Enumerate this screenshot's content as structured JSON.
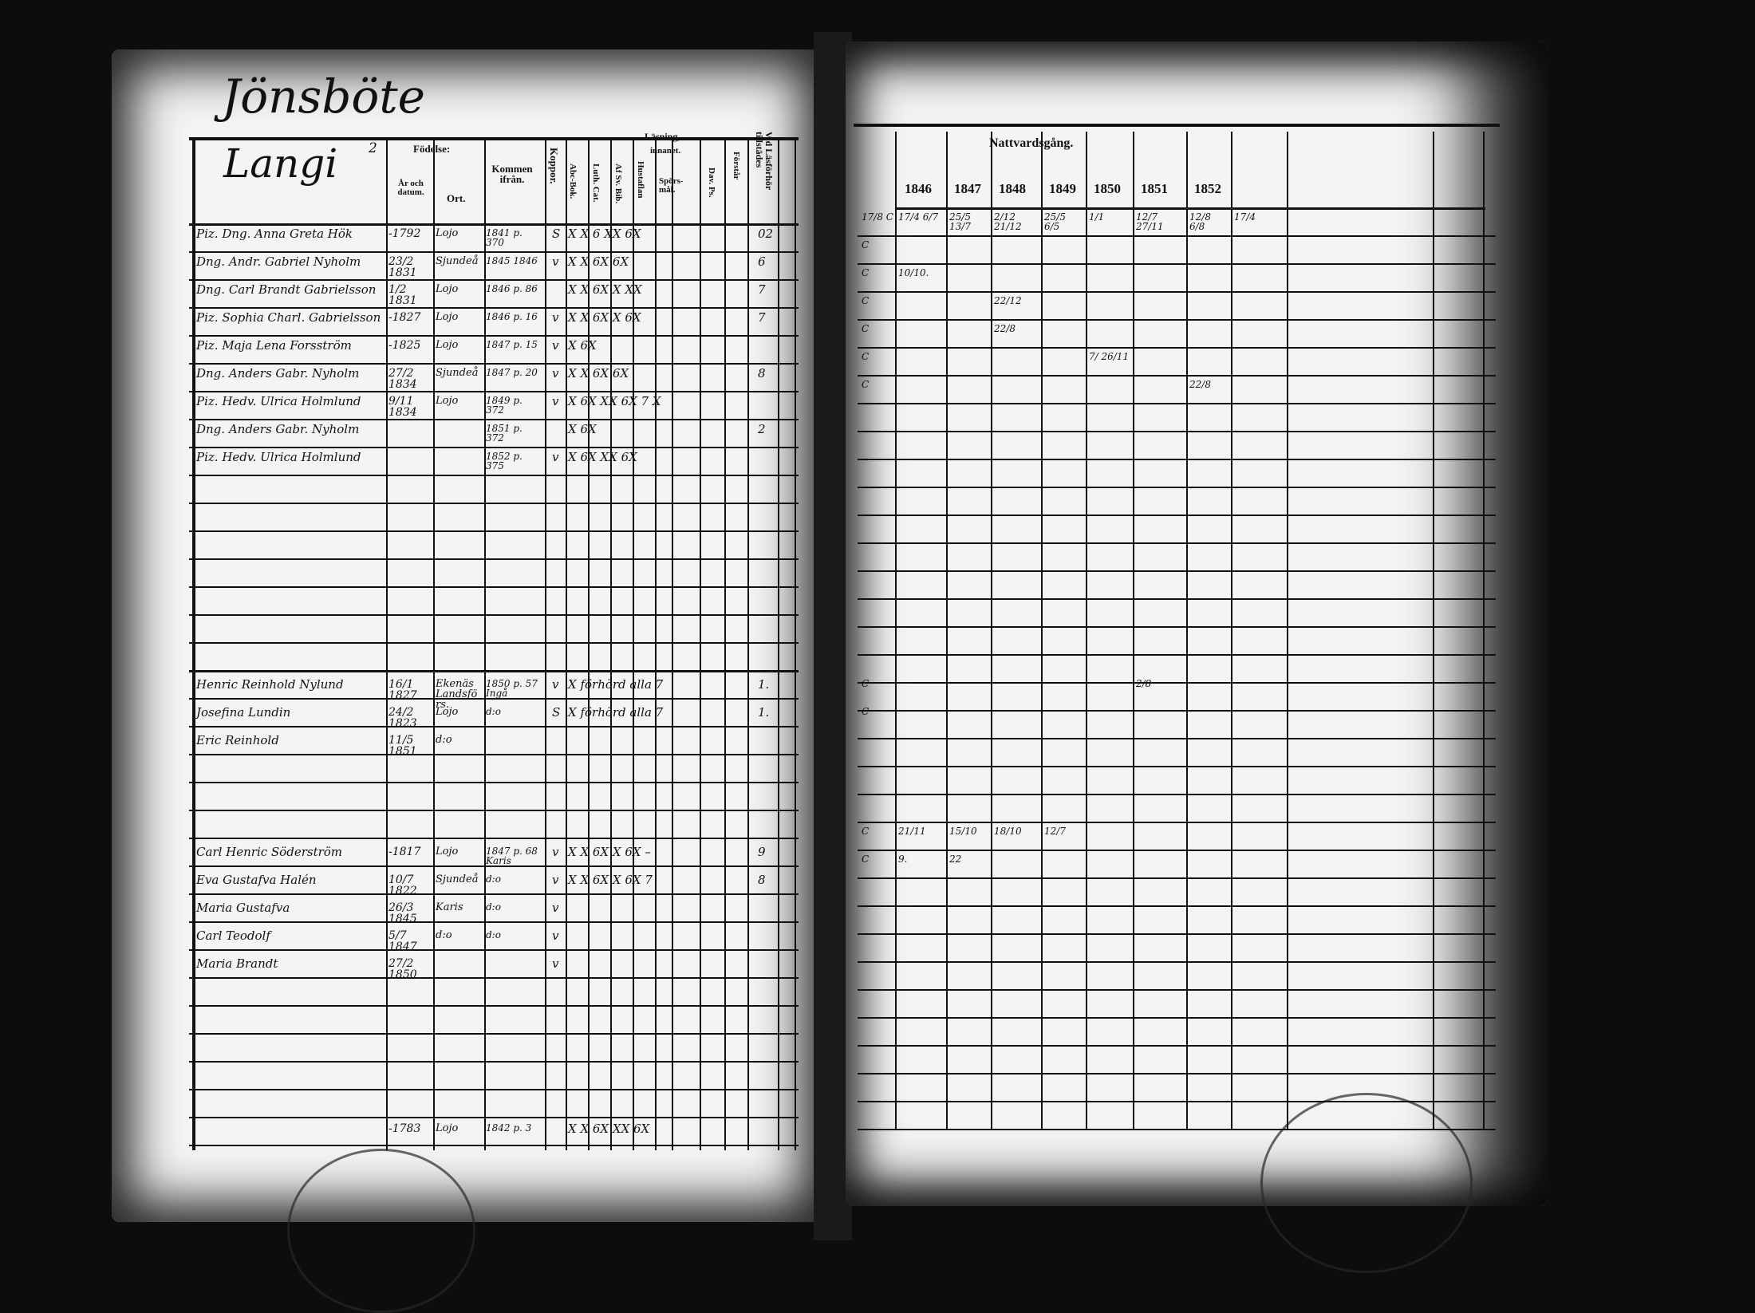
{
  "left": {
    "title": "Jönsböte",
    "section": "Langi",
    "section_no": "2",
    "headers": {
      "birth": "Födelse:",
      "year_date": "År och datum.",
      "place": "Ort.",
      "from": "Kommen ifrån.",
      "smallpox": "Koppor.",
      "reading": "Läsning,",
      "inner": "innanet.",
      "abc": "Abc-Bok.",
      "cat": "Luth. Cat.",
      "bible": "Af Sv. Bib.",
      "table": "Hustaflan",
      "questions": "Spörs-mål.",
      "psalms": "Dav. Ps.",
      "understands": "Förstår",
      "attended": "Vid Läsförhör tillstädes"
    },
    "rows": [
      {
        "name": "Piz. Dng. Anna Greta Hök",
        "birth": "-1792",
        "place": "Lojo",
        "from": "1841 p. 370",
        "pox": "S",
        "marks": "X   X   6   XX  6X",
        "note": "02"
      },
      {
        "name": "Dng. Andr. Gabriel Nyholm",
        "birth": "23/2 1831",
        "place": "Sjundeå",
        "from": "1845 1846",
        "pox": "v",
        "marks": "X   X   6X      6X",
        "note": "6"
      },
      {
        "name": "Dng. Carl Brandt Gabrielsson",
        "birth": "1/2 1831",
        "place": "Lojo",
        "from": "1846 p. 86",
        "pox": "",
        "marks": "X   X   6X  X   XX",
        "note": "7"
      },
      {
        "name": "Piz. Sophia Charl. Gabrielsson",
        "birth": "-1827",
        "place": "Lojo",
        "from": "1846 p. 16",
        "pox": "v",
        "marks": "X   X   6X  X   6X",
        "note": "7"
      },
      {
        "name": "Piz. Maja Lena Forsström",
        "birth": "-1825",
        "place": "Lojo",
        "from": "1847 p. 15",
        "pox": "v",
        "marks": "X               6X",
        "note": ""
      },
      {
        "name": "Dng. Anders Gabr. Nyholm",
        "birth": "27/2 1834",
        "place": "Sjundeå",
        "from": "1847 p. 20",
        "pox": "v",
        "marks": "X   X   6X      6X",
        "note": "8"
      },
      {
        "name": "Piz. Hedv. Ulrica Holmlund",
        "birth": "9/11 1834",
        "place": "Lojo",
        "from": "1849 p. 372",
        "pox": "v",
        "marks": "X       6X  XX  6X   7   X",
        "note": ""
      },
      {
        "name": "Dng. Anders Gabr. Nyholm",
        "birth": "",
        "place": "",
        "from": "1851 p. 372",
        "pox": "",
        "marks": "X               6X",
        "note": "2"
      },
      {
        "name": "Piz. Hedv. Ulrica Holmlund",
        "birth": "",
        "place": "",
        "from": "1852 p. 375",
        "pox": "v",
        "marks": "X       6X  XX  6X",
        "note": ""
      }
    ],
    "rows2": [
      {
        "name": "Henric Reinhold Nylund",
        "birth": "16/1 1827",
        "place": "Ekenäs Landsförs.",
        "from": "1850 p. 57 Ingå",
        "pox": "v",
        "marks": "X   förhörd   alla   7",
        "note": "1."
      },
      {
        "name": "Josefina Lundin",
        "birth": "24/2 1823",
        "place": "Lojo",
        "from": "d:o",
        "pox": "S",
        "marks": "X   förhörd   alla   7",
        "note": "1."
      },
      {
        "name": "Eric Reinhold",
        "birth": "11/5 1851",
        "place": "d:o",
        "from": "",
        "pox": "",
        "marks": "",
        "note": ""
      }
    ],
    "rows3": [
      {
        "name": "Carl Henric Söderström",
        "birth": "-1817",
        "place": "Lojo",
        "from": "1847 p. 68 Karis",
        "pox": "v",
        "marks": "X   X   6X  X   6X   –",
        "note": "9"
      },
      {
        "name": "Eva Gustafva Halén",
        "birth": "10/7 1822",
        "place": "Sjundeå",
        "from": "d:o",
        "pox": "v",
        "marks": "X   X   6X  X   6X   7",
        "note": "8"
      },
      {
        "name": "Maria Gustafva",
        "birth": "26/3 1845",
        "place": "Karis",
        "from": "d:o",
        "pox": "v",
        "marks": "",
        "note": ""
      },
      {
        "name": "Carl Teodolf",
        "birth": "5/7 1847",
        "place": "d:o",
        "from": "d:o",
        "pox": "v",
        "marks": "",
        "note": ""
      },
      {
        "name": "Maria Brandt",
        "birth": "27/2 1850",
        "place": "",
        "from": "",
        "pox": "v",
        "marks": "",
        "note": ""
      }
    ],
    "bottom_row": {
      "birth": "-1783",
      "place": "Lojo",
      "from": "1842 p. 3",
      "marks": "X   X   6X  XX  6X"
    }
  },
  "right": {
    "heading": "Nattvardsgång.",
    "years": [
      "1846",
      "1847",
      "1848",
      "1849",
      "1850",
      "1851",
      "1852"
    ],
    "entries": [
      [
        "17/8 C",
        "17/4 6/7",
        "25/5 13/7",
        "2/12 21/12",
        "25/5 6/5",
        "1/1",
        "12/7 27/11",
        "12/8 6/8",
        "17/4"
      ],
      [
        "C",
        "",
        "",
        "",
        "",
        "",
        "",
        "",
        ""
      ],
      [
        "C",
        "10/10.",
        "",
        "",
        "",
        "",
        "",
        "",
        ""
      ],
      [
        "C",
        "",
        "",
        "22/12",
        "",
        "",
        "",
        "",
        ""
      ],
      [
        "C",
        "",
        "",
        "22/8",
        "",
        "",
        "",
        "",
        ""
      ],
      [
        "C",
        "",
        "",
        "",
        "",
        "7/ 26/11",
        "",
        "",
        ""
      ],
      [
        "C",
        "",
        "",
        "",
        "",
        "",
        "",
        "22/8",
        ""
      ]
    ],
    "entries2": [
      [
        "C",
        "",
        "",
        "",
        "",
        "",
        "2/8",
        "",
        ""
      ],
      [
        "C",
        "",
        "",
        "",
        "",
        "",
        "",
        "",
        ""
      ]
    ],
    "entries3": [
      [
        "C",
        "21/11",
        "15/10",
        "18/10",
        "12/7",
        "",
        "",
        "",
        ""
      ],
      [
        "C",
        "9.",
        "22",
        "",
        "",
        "",
        "",
        "",
        ""
      ]
    ]
  }
}
